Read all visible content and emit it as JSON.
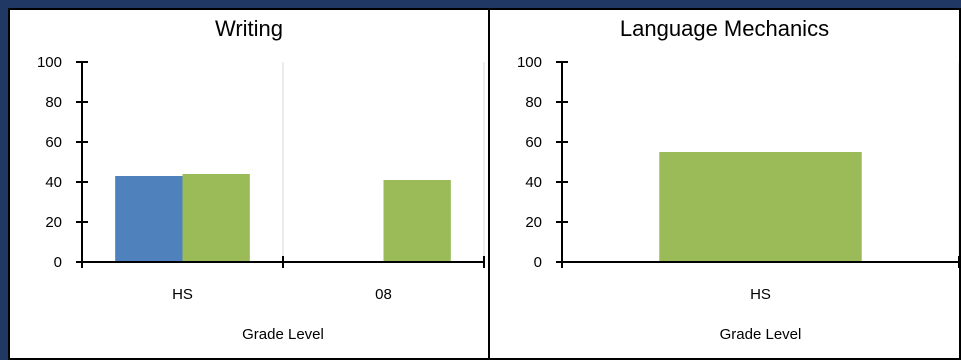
{
  "colors": {
    "blue": "#4f81bd",
    "green": "#9bbb59",
    "grid": "#d9d9d9",
    "axis": "#000000"
  },
  "chart_data": [
    {
      "type": "bar",
      "title": "Writing",
      "xlabel": "Grade Level",
      "ylabel": "",
      "ylim": [
        0,
        100
      ],
      "yticks": [
        "0",
        "20",
        "40",
        "60",
        "80",
        "100"
      ],
      "grid": true,
      "categories": [
        "HS",
        "08"
      ],
      "series": [
        {
          "color": "#4f81bd",
          "values": [
            43,
            null
          ]
        },
        {
          "color": "#9bbb59",
          "values": [
            44,
            41
          ]
        }
      ]
    },
    {
      "type": "bar",
      "title": "Language Mechanics",
      "xlabel": "Grade Level",
      "ylabel": "",
      "ylim": [
        0,
        100
      ],
      "yticks": [
        "0",
        "20",
        "40",
        "60",
        "80",
        "100"
      ],
      "grid": true,
      "categories": [
        "HS"
      ],
      "series": [
        {
          "color": "#9bbb59",
          "values": [
            55
          ]
        }
      ]
    }
  ]
}
